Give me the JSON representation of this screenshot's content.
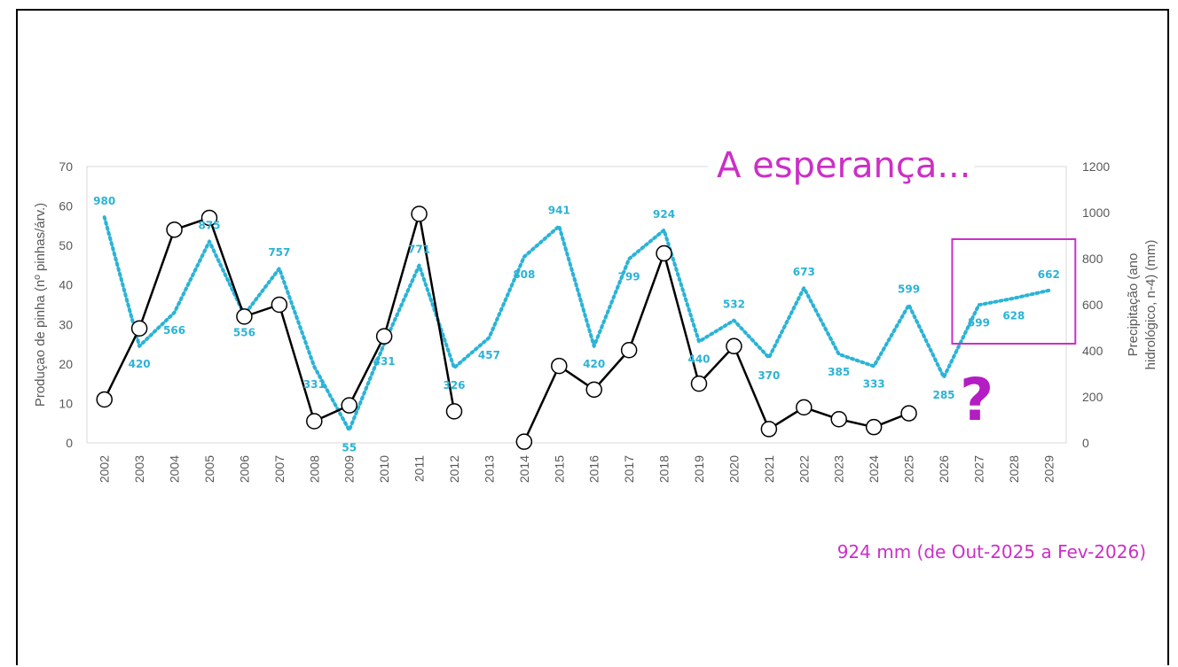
{
  "colors": {
    "production_line": "#000000",
    "production_marker_fill": "#ffffff",
    "precipitation_line": "#2bb3d6",
    "accent": "#cc2fc6",
    "axis_text": "#595959",
    "grid": "#d9d9d9"
  },
  "chart_data": {
    "type": "line",
    "title": "",
    "headline": "A esperança...",
    "question_mark": "?",
    "footnote": "924 mm (de Out-2025 a Fev-2026)",
    "x": [
      "2002",
      "2003",
      "2004",
      "2005",
      "2006",
      "2007",
      "2008",
      "2009",
      "2010",
      "2011",
      "2012",
      "2013",
      "2014",
      "2015",
      "2016",
      "2017",
      "2018",
      "2019",
      "2020",
      "2021",
      "2022",
      "2023",
      "2024",
      "2025",
      "2026",
      "2027",
      "2028",
      "2029"
    ],
    "y_left": {
      "label": "Produçao de pinha (nº pinhas/árv.)",
      "range": [
        0,
        70
      ],
      "ticks": [
        0,
        10,
        20,
        30,
        40,
        50,
        60,
        70
      ]
    },
    "y_right": {
      "label_line1": "Precipitação (ano",
      "label_line2": "hidrológico, n-4) (mm)",
      "range": [
        0,
        1200
      ],
      "ticks": [
        0,
        200,
        400,
        600,
        800,
        1000,
        1200
      ]
    },
    "grid": false,
    "series": [
      {
        "axis": "left",
        "style": "solid-with-circle-markers",
        "values": [
          11,
          29,
          54,
          57,
          32,
          35,
          5.5,
          9.5,
          27,
          58,
          8,
          null,
          0.3,
          19.5,
          13.5,
          23.5,
          48,
          15,
          24.5,
          3.5,
          9,
          6,
          4,
          7.5,
          null,
          null,
          null,
          null
        ]
      },
      {
        "axis": "right",
        "style": "dotted",
        "values": [
          980,
          420,
          566,
          875,
          556,
          757,
          331,
          55,
          431,
          771,
          326,
          457,
          808,
          941,
          420,
          799,
          924,
          440,
          532,
          370,
          673,
          385,
          333,
          599,
          285,
          599,
          628,
          662
        ],
        "data_labels": [
          "980",
          "420",
          "566",
          "875",
          "556",
          "757",
          "331",
          "55",
          "431",
          "771",
          "326",
          "457",
          "808",
          "941",
          "420",
          "799",
          "924",
          "440",
          "532",
          "370",
          "673",
          "385",
          "333",
          "599",
          "285",
          "599",
          "628",
          "662"
        ]
      }
    ],
    "highlight_box": {
      "from": "2027",
      "to": "2029"
    }
  }
}
